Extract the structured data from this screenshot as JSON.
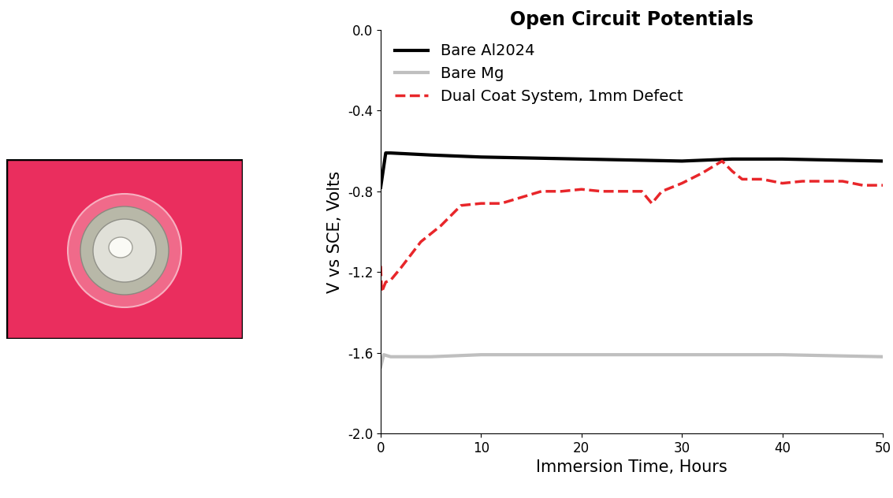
{
  "chart_data": {
    "type": "line",
    "title": "Open Circuit Potentials",
    "x_label": "Immersion Time, Hours",
    "y_label": "V vs SCE, Volts",
    "xlim": [
      0,
      50
    ],
    "xticks": [
      0,
      10,
      20,
      30,
      40,
      50
    ],
    "ylim": [
      -2.0,
      0.0
    ],
    "yticks": [
      -2.0,
      -1.6,
      -1.2,
      -0.8,
      -0.4,
      0.0
    ],
    "legend": "upper left",
    "grid": false,
    "series": [
      {
        "name": "Bare Al2024",
        "color": "#000000",
        "line_style": "solid",
        "x": [
          0,
          0.5,
          1,
          5,
          10,
          20,
          30,
          35,
          40,
          50
        ],
        "values": [
          -0.78,
          -0.61,
          -0.61,
          -0.62,
          -0.63,
          -0.64,
          -0.65,
          -0.64,
          -0.64,
          -0.65
        ]
      },
      {
        "name": "Bare Mg",
        "color": "#bfbfbf",
        "line_style": "solid",
        "x": [
          0,
          0.3,
          1,
          5,
          10,
          20,
          30,
          40,
          50
        ],
        "values": [
          -1.67,
          -1.61,
          -1.62,
          -1.62,
          -1.61,
          -1.61,
          -1.61,
          -1.61,
          -1.62
        ]
      },
      {
        "name": "Dual Coat System, 1mm Defect",
        "color": "#e8262a",
        "line_style": "dashed",
        "x": [
          0,
          0.1,
          0.5,
          1,
          2,
          4,
          6,
          8,
          10,
          12,
          14,
          16,
          18,
          20,
          22,
          24,
          26,
          27,
          28,
          30,
          32,
          34,
          35,
          36,
          38,
          40,
          42,
          44,
          46,
          48,
          50
        ],
        "values": [
          -1.17,
          -1.3,
          -1.25,
          -1.24,
          -1.18,
          -1.05,
          -0.97,
          -0.87,
          -0.86,
          -0.86,
          -0.83,
          -0.8,
          -0.8,
          -0.79,
          -0.8,
          -0.8,
          -0.8,
          -0.86,
          -0.8,
          -0.76,
          -0.71,
          -0.65,
          -0.7,
          -0.74,
          -0.74,
          -0.76,
          -0.75,
          -0.75,
          -0.75,
          -0.77,
          -0.77
        ]
      }
    ]
  }
}
